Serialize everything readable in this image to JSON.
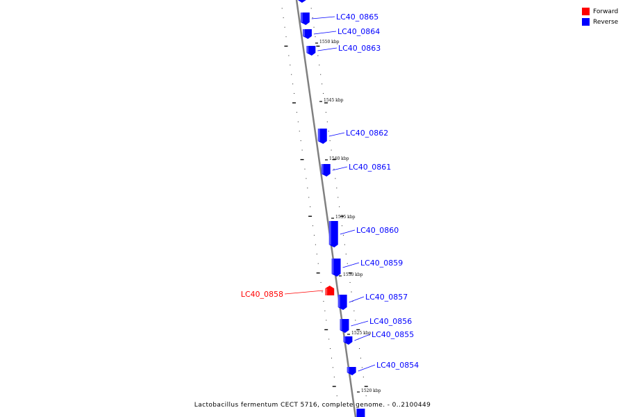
{
  "legend": {
    "forward": {
      "label": "Forward",
      "color": "#ff0000"
    },
    "reverse": {
      "label": "Reverse",
      "color": "#0000ff"
    }
  },
  "caption": "Lactobacillus fermentum CECT 5716, complete genome. - 0..2100449",
  "strand_colors": {
    "forward": "#ff0000",
    "reverse": "#0000ff",
    "backbone": "#808080"
  },
  "genes": [
    {
      "id": "LC40_0865",
      "strand": "reverse"
    },
    {
      "id": "LC40_0864",
      "strand": "reverse"
    },
    {
      "id": "LC40_0863",
      "strand": "reverse"
    },
    {
      "id": "LC40_0862",
      "strand": "reverse"
    },
    {
      "id": "LC40_0861",
      "strand": "reverse"
    },
    {
      "id": "LC40_0860",
      "strand": "reverse"
    },
    {
      "id": "LC40_0859",
      "strand": "reverse"
    },
    {
      "id": "LC40_0858",
      "strand": "forward"
    },
    {
      "id": "LC40_0857",
      "strand": "reverse"
    },
    {
      "id": "LC40_0856",
      "strand": "reverse"
    },
    {
      "id": "LC40_0855",
      "strand": "reverse"
    },
    {
      "id": "LC40_0854",
      "strand": "reverse"
    }
  ],
  "position_labels": [
    "1550 kbp",
    "1545 kbp",
    "1540 kbp",
    "1535 kbp",
    "1530 kbp",
    "1525 kbp",
    "1520 kbp"
  ]
}
